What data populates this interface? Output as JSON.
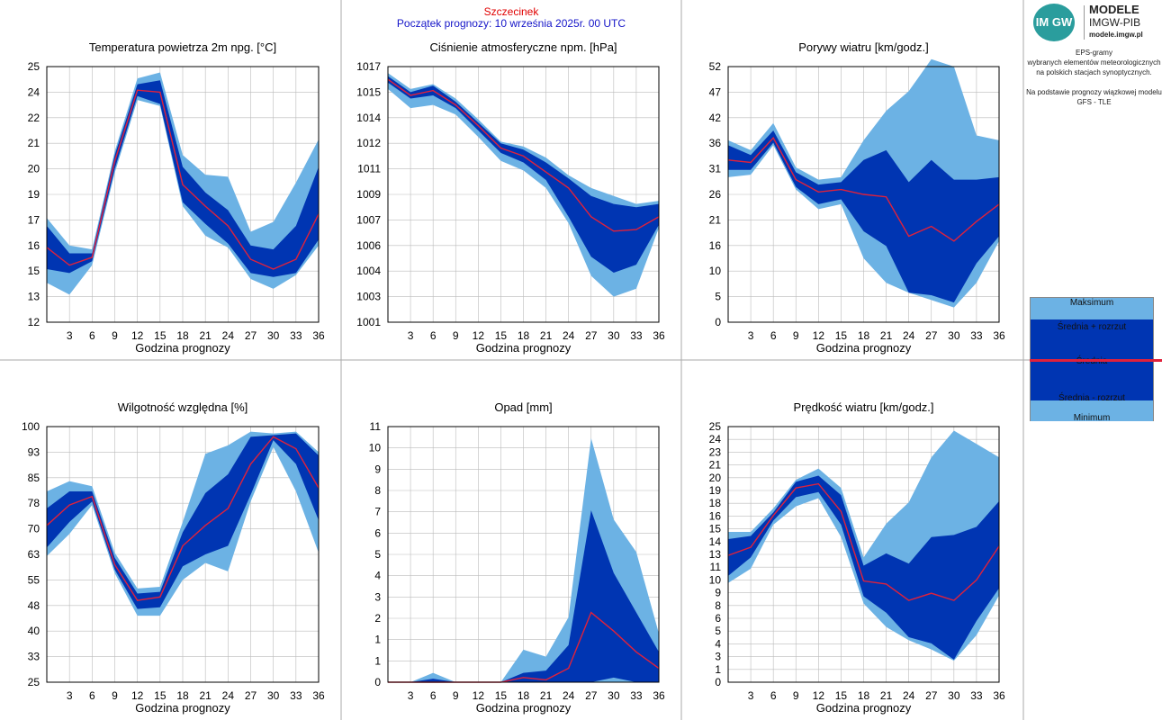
{
  "header": {
    "city": "Szczecinek",
    "forecast_start": "Początek prognozy: 10 września 2025r. 00 UTC"
  },
  "sidebar": {
    "logo_badge": "IM GW",
    "logo_title": "MODELE",
    "logo_subtitle": "IMGW-PIB",
    "logo_url": "modele.imgw.pl",
    "desc_line1": "EPS-gramy",
    "desc_line2": "wybranych elementów meteorologicznych",
    "desc_line3": "na polskich stacjach  synoptycznych.",
    "desc_line4": "Na podstawie prognozy wiązkowej modelu",
    "desc_line5": "GFS - TLE",
    "legend": {
      "max": "Maksimum",
      "mean_plus": "Średnia + rozrzut",
      "mean": "Średnia",
      "mean_minus": "Średnia - rozrzut",
      "min": "Minimum"
    }
  },
  "colors": {
    "outer_band": "#6cb2e4",
    "inner_band": "#0035b2",
    "mean_line": "#e0213b",
    "grid": "#bbbbbb"
  },
  "chart_data": [
    {
      "type": "area",
      "title": "Temperatura powietrza 2m npg. [°C]",
      "xlabel": "Godzina prognozy",
      "ylabel": "",
      "x": [
        0,
        3,
        6,
        9,
        12,
        15,
        18,
        21,
        24,
        27,
        30,
        33,
        36
      ],
      "xticks": [
        3,
        6,
        9,
        12,
        15,
        18,
        21,
        24,
        27,
        30,
        33,
        36
      ],
      "yticks": [
        "12",
        "13",
        "15",
        "16",
        "17",
        "19",
        "20",
        "21",
        "22",
        "24",
        "25"
      ],
      "ylim": [
        12,
        25
      ],
      "ymax": [
        17.3,
        15.9,
        15.7,
        20.7,
        24.4,
        24.7,
        20.5,
        19.5,
        19.4,
        16.6,
        17.1,
        19.1,
        21.3
      ],
      "yhi": [
        16.9,
        15.5,
        15.5,
        20.5,
        24.1,
        24.3,
        19.9,
        18.6,
        17.7,
        15.9,
        15.7,
        16.9,
        19.9
      ],
      "mean": [
        15.8,
        14.9,
        15.3,
        20.2,
        23.8,
        23.7,
        19.0,
        17.9,
        16.9,
        15.2,
        14.7,
        15.2,
        17.5
      ],
      "ylo": [
        14.7,
        14.5,
        15.1,
        19.8,
        23.5,
        23.1,
        18.1,
        17.0,
        16.0,
        14.5,
        14.3,
        14.5,
        16.2
      ],
      "ymin": [
        14.0,
        13.4,
        14.9,
        19.6,
        23.3,
        23.0,
        17.9,
        16.4,
        15.8,
        14.2,
        13.7,
        14.4,
        15.9
      ]
    },
    {
      "type": "area",
      "title": "Ciśnienie atmosferyczne npm. [hPa]",
      "xlabel": "Godzina prognozy",
      "ylabel": "",
      "x": [
        0,
        3,
        6,
        9,
        12,
        15,
        18,
        21,
        24,
        27,
        30,
        33,
        36
      ],
      "xticks": [
        3,
        6,
        9,
        12,
        15,
        18,
        21,
        24,
        27,
        30,
        33,
        36
      ],
      "yticks": [
        "1001",
        "1003",
        "1004",
        "1006",
        "1007",
        "1009",
        "1011",
        "1012",
        "1014",
        "1015",
        "1017"
      ],
      "ylim": [
        1001,
        1017
      ],
      "ymax": [
        1016.6,
        1015.6,
        1015.9,
        1015.0,
        1013.7,
        1012.3,
        1012.0,
        1011.3,
        1010.2,
        1009.4,
        1008.9,
        1008.4,
        1008.6
      ],
      "yhi": [
        1016.4,
        1015.4,
        1015.8,
        1014.8,
        1013.5,
        1012.2,
        1011.8,
        1011.0,
        1010.0,
        1008.9,
        1008.4,
        1008.2,
        1008.4
      ],
      "mean": [
        1016.2,
        1015.2,
        1015.5,
        1014.6,
        1013.3,
        1011.9,
        1011.4,
        1010.4,
        1009.4,
        1007.6,
        1006.7,
        1006.8,
        1007.6
      ],
      "ylo": [
        1016.0,
        1015.0,
        1015.2,
        1014.4,
        1013.0,
        1011.6,
        1011.0,
        1009.9,
        1007.6,
        1005.1,
        1004.1,
        1004.6,
        1007.1
      ],
      "ymin": [
        1015.6,
        1014.4,
        1014.6,
        1014.0,
        1012.6,
        1011.1,
        1010.5,
        1009.4,
        1007.2,
        1003.9,
        1002.6,
        1003.1,
        1006.9
      ]
    },
    {
      "type": "area",
      "title": "Porywy wiatru [km/godz.]",
      "xlabel": "Godzina prognozy",
      "ylabel": "",
      "x": [
        0,
        3,
        6,
        9,
        12,
        15,
        18,
        21,
        24,
        27,
        30,
        33,
        36
      ],
      "xticks": [
        3,
        6,
        9,
        12,
        15,
        18,
        21,
        24,
        27,
        30,
        33,
        36
      ],
      "yticks": [
        "0",
        "5",
        "10",
        "16",
        "21",
        "26",
        "31",
        "36",
        "42",
        "47",
        "52"
      ],
      "ylim": [
        0,
        52
      ],
      "ymax": [
        37.0,
        35.0,
        40.5,
        31.5,
        29.0,
        29.5,
        37.0,
        43.0,
        47.0,
        53.5,
        52.0,
        38.0,
        37.0
      ],
      "yhi": [
        36.0,
        34.0,
        39.0,
        30.5,
        28.0,
        28.5,
        33.0,
        35.0,
        28.5,
        33.0,
        29.0,
        29.0,
        29.5
      ],
      "mean": [
        33.0,
        32.5,
        37.5,
        29.0,
        26.5,
        27.0,
        26.0,
        25.5,
        17.5,
        19.5,
        16.5,
        20.5,
        24.0
      ],
      "ylo": [
        31.0,
        31.0,
        36.5,
        27.5,
        24.0,
        25.0,
        18.5,
        15.5,
        6.0,
        5.5,
        4.0,
        12.0,
        17.5
      ],
      "ymin": [
        29.5,
        30.0,
        36.0,
        27.0,
        23.0,
        24.0,
        13.0,
        8.0,
        6.0,
        4.5,
        3.0,
        8.0,
        16.5
      ]
    },
    {
      "type": "area",
      "title": "Wilgotność względna [%]",
      "xlabel": "Godzina prognozy",
      "ylabel": "",
      "x": [
        0,
        3,
        6,
        9,
        12,
        15,
        18,
        21,
        24,
        27,
        30,
        33,
        36
      ],
      "xticks": [
        3,
        6,
        9,
        12,
        15,
        18,
        21,
        24,
        27,
        30,
        33,
        36
      ],
      "yticks": [
        "25",
        "33",
        "40",
        "48",
        "55",
        "63",
        "70",
        "78",
        "85",
        "93",
        "100"
      ],
      "ylim": [
        25,
        100
      ],
      "ymax": [
        81.0,
        84.0,
        82.5,
        63.0,
        52.5,
        53.0,
        72.0,
        92.0,
        94.5,
        98.5,
        98.0,
        98.5,
        92.5
      ],
      "yhi": [
        76.0,
        81.0,
        81.0,
        61.5,
        51.0,
        51.5,
        69.0,
        80.5,
        86.0,
        97.0,
        97.5,
        98.0,
        91.5
      ],
      "mean": [
        71.0,
        77.0,
        79.5,
        59.5,
        49.0,
        50.0,
        65.0,
        71.0,
        76.0,
        89.0,
        97.0,
        93.5,
        82.0
      ],
      "ylo": [
        64.5,
        72.0,
        78.0,
        58.0,
        46.5,
        47.0,
        59.0,
        62.5,
        65.0,
        80.0,
        96.0,
        89.0,
        72.5
      ],
      "ymin": [
        62.0,
        68.5,
        77.0,
        57.0,
        44.5,
        44.5,
        55.0,
        60.0,
        57.5,
        78.0,
        94.0,
        81.0,
        63.0
      ]
    },
    {
      "type": "area",
      "title": "Opad [mm]",
      "xlabel": "Godzina prognozy",
      "ylabel": "",
      "x": [
        0,
        3,
        6,
        9,
        12,
        15,
        18,
        21,
        24,
        27,
        30,
        33,
        36
      ],
      "xticks": [
        3,
        6,
        9,
        12,
        15,
        18,
        21,
        24,
        27,
        30,
        33,
        36
      ],
      "yticks": [
        "0",
        "1",
        "1",
        "2",
        "3",
        "4",
        "5",
        "6",
        "7",
        "8",
        "9",
        "10",
        "11"
      ],
      "ylim": [
        0,
        11
      ],
      "ymax": [
        0,
        0,
        0.4,
        0,
        0,
        0,
        1.4,
        1.1,
        2.8,
        10.5,
        7.0,
        5.6,
        2.1
      ],
      "yhi": [
        0,
        0,
        0.15,
        0,
        0,
        0,
        0.4,
        0.5,
        1.6,
        7.4,
        4.7,
        3.0,
        1.3
      ],
      "mean": [
        0,
        0,
        0,
        0,
        0,
        0,
        0.2,
        0.1,
        0.6,
        3.0,
        2.2,
        1.3,
        0.6
      ],
      "ylo": [
        0,
        0,
        0,
        0,
        0,
        0,
        0,
        0,
        0,
        0,
        0.2,
        0,
        0
      ],
      "ymin": [
        0,
        0,
        0,
        0,
        0,
        0,
        0,
        0,
        0,
        0,
        0,
        0,
        0
      ]
    },
    {
      "type": "area",
      "title": "Prędkość wiatru [km/godz.]",
      "xlabel": "Godzina prognozy",
      "ylabel": "",
      "x": [
        0,
        3,
        6,
        9,
        12,
        15,
        18,
        21,
        24,
        27,
        30,
        33,
        36
      ],
      "xticks": [
        3,
        6,
        9,
        12,
        15,
        18,
        21,
        24,
        27,
        30,
        33,
        36
      ],
      "yticks": [
        "0",
        "1",
        "3",
        "4",
        "5",
        "6",
        "8",
        "9",
        "10",
        "11",
        "13",
        "14",
        "15",
        "16",
        "18",
        "19",
        "20",
        "21",
        "23",
        "24",
        "25"
      ],
      "ylim": [
        0,
        25
      ],
      "ymax": [
        14.7,
        14.7,
        17.0,
        19.8,
        20.9,
        19.0,
        12.2,
        15.5,
        17.6,
        22.0,
        24.6,
        23.3,
        22.0
      ],
      "yhi": [
        14.0,
        14.3,
        16.6,
        19.6,
        20.2,
        18.3,
        11.4,
        12.6,
        11.6,
        14.2,
        14.4,
        15.2,
        17.7
      ],
      "mean": [
        12.4,
        13.2,
        16.3,
        19.0,
        19.4,
        16.7,
        9.9,
        9.6,
        8.0,
        8.7,
        8.0,
        10.0,
        13.3
      ],
      "ylo": [
        10.4,
        12.2,
        15.8,
        18.1,
        18.6,
        15.4,
        8.4,
        6.8,
        4.4,
        3.8,
        2.2,
        6.0,
        9.2
      ],
      "ymin": [
        9.7,
        11.1,
        15.4,
        17.2,
        18.0,
        14.2,
        7.7,
        5.4,
        4.1,
        3.2,
        2.1,
        4.6,
        8.5
      ]
    }
  ]
}
